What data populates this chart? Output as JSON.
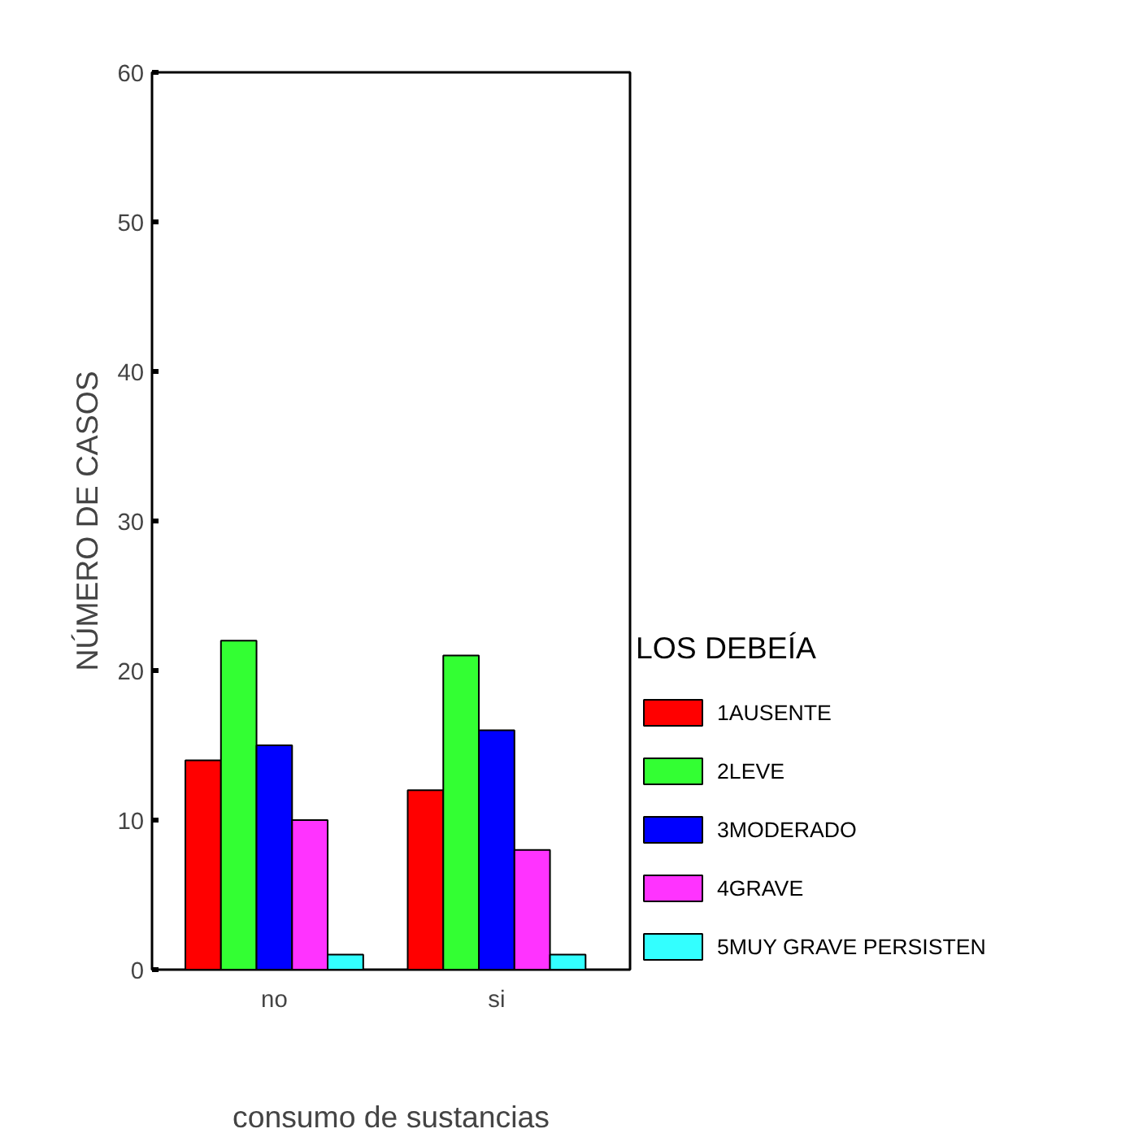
{
  "chart_data": {
    "type": "bar",
    "xlabel": "consumo de sustancias",
    "ylabel": "NÚMERO DE CASOS",
    "legend_title": "LOS DEBEÍA",
    "categories": [
      "no",
      "si"
    ],
    "series": [
      {
        "name": "1AUSENTE",
        "color": "#ff0000",
        "values": [
          14,
          12
        ]
      },
      {
        "name": "2LEVE",
        "color": "#33ff33",
        "values": [
          22,
          21
        ]
      },
      {
        "name": "3MODERADO",
        "color": "#0000ff",
        "values": [
          15,
          16
        ]
      },
      {
        "name": "4GRAVE",
        "color": "#ff33ff",
        "values": [
          10,
          8
        ]
      },
      {
        "name": "5MUY GRAVE PERSISTEN",
        "color": "#33ffff",
        "values": [
          1,
          1
        ]
      }
    ],
    "ylim": [
      0,
      60
    ],
    "yticks": [
      0,
      10,
      20,
      30,
      40,
      50,
      60
    ],
    "legend": "right"
  }
}
